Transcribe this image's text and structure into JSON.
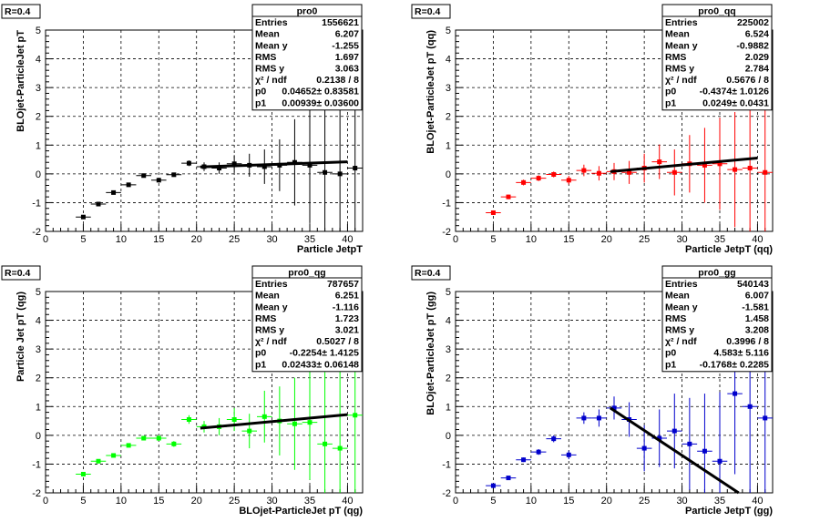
{
  "chart_data": [
    {
      "type": "scatter",
      "corner_label": "R=0.4",
      "xlabel": "Particle JetpT",
      "ylabel": "BLOjet-ParticleJet pT",
      "xlim": [
        0,
        42
      ],
      "ylim": [
        -2,
        5
      ],
      "xticks": [
        0,
        5,
        10,
        15,
        20,
        25,
        30,
        35,
        40
      ],
      "yticks": [
        -2,
        -1,
        0,
        1,
        2,
        3,
        4,
        5
      ],
      "grid": true,
      "colors": {
        "marker": "#000000",
        "fit": "#000000"
      },
      "stats": {
        "name": "pro0",
        "rows": [
          {
            "label": "Entries",
            "value": "1556621"
          },
          {
            "label": "Mean",
            "value": "6.207"
          },
          {
            "label": "Mean y",
            "value": "-1.255"
          },
          {
            "label": "RMS",
            "value": "1.697"
          },
          {
            "label": "RMS y",
            "value": "3.063"
          },
          {
            "label": "χ² / ndf",
            "value": "0.2138 / 8"
          },
          {
            "label": "p0",
            "value": "0.04652± 0.83581"
          },
          {
            "label": "p1",
            "value": "0.00939± 0.03600"
          }
        ]
      },
      "fit": {
        "x": [
          20.5,
          40
        ],
        "y": [
          0.24,
          0.42
        ]
      },
      "points": [
        {
          "x": 5,
          "y": -1.5,
          "err": 0.04
        },
        {
          "x": 7,
          "y": -1.05,
          "err": 0.04
        },
        {
          "x": 9,
          "y": -0.65,
          "err": 0.04
        },
        {
          "x": 11,
          "y": -0.38,
          "err": 0.05
        },
        {
          "x": 13,
          "y": -0.06,
          "err": 0.05
        },
        {
          "x": 15,
          "y": -0.22,
          "err": 0.06
        },
        {
          "x": 17,
          "y": -0.03,
          "err": 0.07
        },
        {
          "x": 19,
          "y": 0.37,
          "err": 0.1
        },
        {
          "x": 21,
          "y": 0.25,
          "err": 0.15
        },
        {
          "x": 23,
          "y": 0.2,
          "err": 0.2
        },
        {
          "x": 25,
          "y": 0.35,
          "err": 0.3
        },
        {
          "x": 27,
          "y": 0.3,
          "err": 0.4
        },
        {
          "x": 29,
          "y": 0.25,
          "err": 0.6
        },
        {
          "x": 31,
          "y": 0.3,
          "err": 0.9
        },
        {
          "x": 33,
          "y": 0.4,
          "err": 1.5
        },
        {
          "x": 35,
          "y": 0.3,
          "err": 2.0
        },
        {
          "x": 37,
          "y": 0.05,
          "err": 2.5
        },
        {
          "x": 39,
          "y": 0.0,
          "err": 3.0
        },
        {
          "x": 41,
          "y": 0.2,
          "err": 3.5
        }
      ]
    },
    {
      "type": "scatter",
      "corner_label": "R=0.4",
      "xlabel": "Particle JetpT (qq)",
      "ylabel": "BLOjet-ParticleJet pT (qq)",
      "xlim": [
        0,
        42
      ],
      "ylim": [
        -2,
        5
      ],
      "xticks": [
        0,
        5,
        10,
        15,
        20,
        25,
        30,
        35,
        40
      ],
      "yticks": [
        -2,
        -1,
        0,
        1,
        2,
        3,
        4,
        5
      ],
      "grid": true,
      "colors": {
        "marker": "#ff0000",
        "fit": "#000000"
      },
      "stats": {
        "name": "pro0_qq",
        "rows": [
          {
            "label": "Entries",
            "value": "225002"
          },
          {
            "label": "Mean",
            "value": "6.524"
          },
          {
            "label": "Mean y",
            "value": "-0.9882"
          },
          {
            "label": "RMS",
            "value": "2.029"
          },
          {
            "label": "RMS y",
            "value": "2.784"
          },
          {
            "label": "χ² / ndf",
            "value": "0.5676 / 8"
          },
          {
            "label": "p0",
            "value": "-0.4374± 1.0126"
          },
          {
            "label": "p1",
            "value": "0.0249± 0.0431"
          }
        ]
      },
      "fit": {
        "x": [
          20.5,
          40
        ],
        "y": [
          0.08,
          0.55
        ]
      },
      "points": [
        {
          "x": 5,
          "y": -1.35,
          "err": 0.08
        },
        {
          "x": 7,
          "y": -0.8,
          "err": 0.08
        },
        {
          "x": 9,
          "y": -0.3,
          "err": 0.1
        },
        {
          "x": 11,
          "y": -0.15,
          "err": 0.1
        },
        {
          "x": 13,
          "y": -0.02,
          "err": 0.1
        },
        {
          "x": 15,
          "y": -0.22,
          "err": 0.15
        },
        {
          "x": 17,
          "y": 0.12,
          "err": 0.2
        },
        {
          "x": 19,
          "y": 0.02,
          "err": 0.25
        },
        {
          "x": 21,
          "y": 0.08,
          "err": 0.3
        },
        {
          "x": 23,
          "y": 0.05,
          "err": 0.4
        },
        {
          "x": 25,
          "y": 0.2,
          "err": 0.5
        },
        {
          "x": 27,
          "y": 0.42,
          "err": 0.6
        },
        {
          "x": 29,
          "y": 0.05,
          "err": 0.8
        },
        {
          "x": 31,
          "y": 0.35,
          "err": 1.0
        },
        {
          "x": 33,
          "y": 0.3,
          "err": 1.3
        },
        {
          "x": 35,
          "y": 0.35,
          "err": 1.6
        },
        {
          "x": 37,
          "y": 0.15,
          "err": 2.0
        },
        {
          "x": 39,
          "y": 0.2,
          "err": 2.5
        },
        {
          "x": 41,
          "y": 0.05,
          "err": 3.0
        }
      ]
    },
    {
      "type": "scatter",
      "corner_label": "R=0.4",
      "xlabel": "BLOjet-ParticleJet pT (qg)",
      "ylabel": "Particle Jet pT (qg)",
      "xlim": [
        0,
        42
      ],
      "ylim": [
        -2,
        5
      ],
      "xticks": [
        0,
        5,
        10,
        15,
        20,
        25,
        30,
        35,
        40
      ],
      "yticks": [
        -2,
        -1,
        0,
        1,
        2,
        3,
        4,
        5
      ],
      "grid": true,
      "colors": {
        "marker": "#00ff00",
        "fit": "#000000"
      },
      "stats": {
        "name": "pro0_qg",
        "rows": [
          {
            "label": "Entries",
            "value": "787657"
          },
          {
            "label": "Mean",
            "value": "6.251"
          },
          {
            "label": "Mean y",
            "value": "-1.116"
          },
          {
            "label": "RMS",
            "value": "1.723"
          },
          {
            "label": "RMS y",
            "value": "3.021"
          },
          {
            "label": "χ² / ndf",
            "value": "0.5027 / 8"
          },
          {
            "label": "p0",
            "value": "-0.2254± 1.4125"
          },
          {
            "label": "p1",
            "value": "0.02433± 0.06148"
          }
        ]
      },
      "fit": {
        "x": [
          20.5,
          40
        ],
        "y": [
          0.25,
          0.72
        ]
      },
      "points": [
        {
          "x": 5,
          "y": -1.35,
          "err": 0.05
        },
        {
          "x": 7,
          "y": -0.9,
          "err": 0.05
        },
        {
          "x": 9,
          "y": -0.7,
          "err": 0.06
        },
        {
          "x": 11,
          "y": -0.35,
          "err": 0.06
        },
        {
          "x": 13,
          "y": -0.1,
          "err": 0.07
        },
        {
          "x": 15,
          "y": -0.1,
          "err": 0.1
        },
        {
          "x": 17,
          "y": -0.3,
          "err": 0.1
        },
        {
          "x": 19,
          "y": 0.55,
          "err": 0.15
        },
        {
          "x": 21,
          "y": 0.3,
          "err": 0.2
        },
        {
          "x": 23,
          "y": 0.3,
          "err": 0.3
        },
        {
          "x": 25,
          "y": 0.55,
          "err": 0.4
        },
        {
          "x": 27,
          "y": 0.15,
          "err": 0.6
        },
        {
          "x": 29,
          "y": 0.65,
          "err": 0.9
        },
        {
          "x": 31,
          "y": 0.5,
          "err": 1.2
        },
        {
          "x": 33,
          "y": 0.4,
          "err": 1.6
        },
        {
          "x": 35,
          "y": 0.45,
          "err": 2.0
        },
        {
          "x": 37,
          "y": -0.3,
          "err": 2.5
        },
        {
          "x": 39,
          "y": -0.45,
          "err": 2.8
        },
        {
          "x": 41,
          "y": 0.7,
          "err": 3.0
        }
      ]
    },
    {
      "type": "scatter",
      "corner_label": "R=0.4",
      "xlabel": "Particle JetpT (gg)",
      "ylabel": "BLOjet-ParticleJet pT (gg)",
      "xlim": [
        0,
        42
      ],
      "ylim": [
        -2,
        5
      ],
      "xticks": [
        0,
        5,
        10,
        15,
        20,
        25,
        30,
        35,
        40
      ],
      "yticks": [
        -2,
        -1,
        0,
        1,
        2,
        3,
        4,
        5
      ],
      "grid": true,
      "colors": {
        "marker": "#0000cc",
        "fit": "#000000"
      },
      "stats": {
        "name": "pro0_gg",
        "rows": [
          {
            "label": "Entries",
            "value": "540143"
          },
          {
            "label": "Mean",
            "value": "6.007"
          },
          {
            "label": "Mean y",
            "value": "-1.581"
          },
          {
            "label": "RMS",
            "value": "1.458"
          },
          {
            "label": "RMS y",
            "value": "3.208"
          },
          {
            "label": "χ² / ndf",
            "value": "0.3996 / 8"
          },
          {
            "label": "p0",
            "value": "4.583± 5.116"
          },
          {
            "label": "p1",
            "value": "-0.1768± 0.2285"
          }
        ]
      },
      "fit": {
        "x": [
          20.5,
          37.5
        ],
        "y": [
          0.95,
          -2.0
        ]
      },
      "points": [
        {
          "x": 5,
          "y": -1.75,
          "err": 0.05
        },
        {
          "x": 7,
          "y": -1.48,
          "err": 0.05
        },
        {
          "x": 9,
          "y": -0.85,
          "err": 0.08
        },
        {
          "x": 11,
          "y": -0.58,
          "err": 0.1
        },
        {
          "x": 13,
          "y": -0.12,
          "err": 0.12
        },
        {
          "x": 15,
          "y": -0.68,
          "err": 0.15
        },
        {
          "x": 17,
          "y": 0.6,
          "err": 0.2
        },
        {
          "x": 19,
          "y": 0.6,
          "err": 0.3
        },
        {
          "x": 21,
          "y": 0.95,
          "err": 0.4
        },
        {
          "x": 23,
          "y": 0.55,
          "err": 0.6
        },
        {
          "x": 25,
          "y": -0.45,
          "err": 0.8
        },
        {
          "x": 27,
          "y": -0.1,
          "err": 1.0
        },
        {
          "x": 29,
          "y": 0.15,
          "err": 1.3
        },
        {
          "x": 31,
          "y": -0.3,
          "err": 1.6
        },
        {
          "x": 33,
          "y": -0.55,
          "err": 2.0
        },
        {
          "x": 35,
          "y": -0.9,
          "err": 2.4
        },
        {
          "x": 37,
          "y": 1.45,
          "err": 2.8
        },
        {
          "x": 39,
          "y": 1.0,
          "err": 3.2
        },
        {
          "x": 41,
          "y": 0.6,
          "err": 3.5
        }
      ]
    }
  ]
}
